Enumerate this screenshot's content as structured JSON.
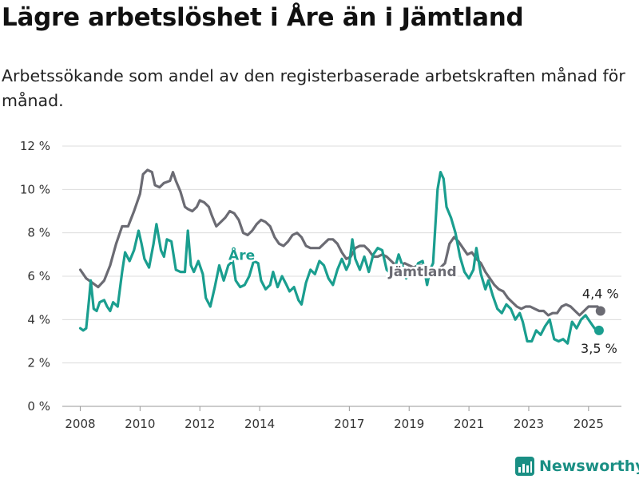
{
  "chart_data": {
    "type": "line",
    "title": "Lägre arbetslöshet i Åre än i Jämtland",
    "subtitle": "Arbetssökande som andel av den registerbaserade arbetskraften månad för månad.",
    "ylim": [
      0,
      12
    ],
    "y_ticks": [
      0,
      2,
      4,
      6,
      8,
      10,
      12
    ],
    "y_tick_labels": [
      "0 %",
      "2 %",
      "4 %",
      "6 %",
      "8 %",
      "10 %",
      "12 %"
    ],
    "x_tick_years": [
      2008,
      2010,
      2012,
      2014,
      2017,
      2019,
      2021,
      2023,
      2025
    ],
    "x_tick_labels": [
      "2008",
      "2010",
      "2012",
      "2014",
      "2017",
      "2019",
      "2021",
      "2023",
      "2025"
    ],
    "xlim": [
      2007.4,
      2026.1
    ],
    "grid": true,
    "series": [
      {
        "name": "Jämtland",
        "color": "#6b6b73",
        "end_label": "4,4 %",
        "points": [
          [
            2008.0,
            6.3
          ],
          [
            2008.2,
            5.9
          ],
          [
            2008.4,
            5.7
          ],
          [
            2008.6,
            5.5
          ],
          [
            2008.8,
            5.8
          ],
          [
            2009.0,
            6.5
          ],
          [
            2009.2,
            7.5
          ],
          [
            2009.4,
            8.3
          ],
          [
            2009.6,
            8.3
          ],
          [
            2009.8,
            9.0
          ],
          [
            2010.0,
            9.8
          ],
          [
            2010.1,
            10.7
          ],
          [
            2010.25,
            10.9
          ],
          [
            2010.4,
            10.8
          ],
          [
            2010.5,
            10.2
          ],
          [
            2010.65,
            10.1
          ],
          [
            2010.8,
            10.3
          ],
          [
            2011.0,
            10.4
          ],
          [
            2011.1,
            10.8
          ],
          [
            2011.2,
            10.4
          ],
          [
            2011.35,
            9.9
          ],
          [
            2011.5,
            9.2
          ],
          [
            2011.6,
            9.1
          ],
          [
            2011.75,
            9.0
          ],
          [
            2011.9,
            9.2
          ],
          [
            2012.0,
            9.5
          ],
          [
            2012.15,
            9.4
          ],
          [
            2012.3,
            9.2
          ],
          [
            2012.4,
            8.8
          ],
          [
            2012.55,
            8.3
          ],
          [
            2012.7,
            8.5
          ],
          [
            2012.85,
            8.7
          ],
          [
            2013.0,
            9.0
          ],
          [
            2013.15,
            8.9
          ],
          [
            2013.3,
            8.6
          ],
          [
            2013.45,
            8.0
          ],
          [
            2013.6,
            7.9
          ],
          [
            2013.75,
            8.1
          ],
          [
            2013.9,
            8.4
          ],
          [
            2014.05,
            8.6
          ],
          [
            2014.2,
            8.5
          ],
          [
            2014.35,
            8.3
          ],
          [
            2014.5,
            7.8
          ],
          [
            2014.65,
            7.5
          ],
          [
            2014.8,
            7.4
          ],
          [
            2014.95,
            7.6
          ],
          [
            2015.1,
            7.9
          ],
          [
            2015.25,
            8.0
          ],
          [
            2015.4,
            7.8
          ],
          [
            2015.55,
            7.4
          ],
          [
            2015.7,
            7.3
          ],
          [
            2015.85,
            7.3
          ],
          [
            2016.0,
            7.3
          ],
          [
            2016.15,
            7.5
          ],
          [
            2016.3,
            7.7
          ],
          [
            2016.45,
            7.7
          ],
          [
            2016.6,
            7.5
          ],
          [
            2016.75,
            7.1
          ],
          [
            2016.9,
            6.8
          ],
          [
            2017.05,
            6.9
          ],
          [
            2017.2,
            7.3
          ],
          [
            2017.35,
            7.4
          ],
          [
            2017.5,
            7.4
          ],
          [
            2017.65,
            7.2
          ],
          [
            2017.8,
            6.9
          ],
          [
            2017.95,
            6.9
          ],
          [
            2018.1,
            7.0
          ],
          [
            2018.25,
            6.9
          ],
          [
            2018.4,
            6.7
          ],
          [
            2018.55,
            6.5
          ],
          [
            2018.7,
            6.5
          ],
          [
            2018.85,
            6.6
          ],
          [
            2019.0,
            6.5
          ],
          [
            2019.15,
            6.4
          ],
          [
            2019.3,
            6.5
          ],
          [
            2019.45,
            6.5
          ],
          [
            2019.6,
            6.4
          ],
          [
            2019.75,
            6.3
          ],
          [
            2019.9,
            6.3
          ],
          [
            2020.05,
            6.4
          ],
          [
            2020.2,
            6.6
          ],
          [
            2020.35,
            7.5
          ],
          [
            2020.5,
            7.8
          ],
          [
            2020.65,
            7.6
          ],
          [
            2020.8,
            7.3
          ],
          [
            2020.95,
            7.0
          ],
          [
            2021.1,
            7.1
          ],
          [
            2021.25,
            6.8
          ],
          [
            2021.4,
            6.6
          ],
          [
            2021.55,
            6.2
          ],
          [
            2021.7,
            5.9
          ],
          [
            2021.85,
            5.6
          ],
          [
            2022.0,
            5.4
          ],
          [
            2022.15,
            5.3
          ],
          [
            2022.3,
            5.0
          ],
          [
            2022.45,
            4.8
          ],
          [
            2022.6,
            4.6
          ],
          [
            2022.75,
            4.5
          ],
          [
            2022.9,
            4.6
          ],
          [
            2023.05,
            4.6
          ],
          [
            2023.2,
            4.5
          ],
          [
            2023.35,
            4.4
          ],
          [
            2023.5,
            4.4
          ],
          [
            2023.65,
            4.2
          ],
          [
            2023.8,
            4.3
          ],
          [
            2023.95,
            4.3
          ],
          [
            2024.1,
            4.6
          ],
          [
            2024.25,
            4.7
          ],
          [
            2024.4,
            4.6
          ],
          [
            2024.55,
            4.4
          ],
          [
            2024.7,
            4.2
          ],
          [
            2024.85,
            4.4
          ],
          [
            2025.0,
            4.6
          ],
          [
            2025.15,
            4.6
          ],
          [
            2025.3,
            4.6
          ],
          [
            2025.4,
            4.4
          ]
        ]
      },
      {
        "name": "Åre",
        "color": "#1a9e8f",
        "end_label": "3,5 %",
        "points": [
          [
            2008.0,
            3.6
          ],
          [
            2008.1,
            3.5
          ],
          [
            2008.2,
            3.6
          ],
          [
            2008.3,
            5.0
          ],
          [
            2008.35,
            5.8
          ],
          [
            2008.45,
            4.5
          ],
          [
            2008.55,
            4.4
          ],
          [
            2008.65,
            4.8
          ],
          [
            2008.8,
            4.9
          ],
          [
            2008.9,
            4.6
          ],
          [
            2009.0,
            4.4
          ],
          [
            2009.1,
            4.8
          ],
          [
            2009.25,
            4.6
          ],
          [
            2009.4,
            6.2
          ],
          [
            2009.5,
            7.1
          ],
          [
            2009.65,
            6.7
          ],
          [
            2009.8,
            7.2
          ],
          [
            2009.95,
            8.1
          ],
          [
            2010.05,
            7.5
          ],
          [
            2010.15,
            6.8
          ],
          [
            2010.3,
            6.4
          ],
          [
            2010.45,
            7.5
          ],
          [
            2010.55,
            8.4
          ],
          [
            2010.7,
            7.2
          ],
          [
            2010.8,
            6.9
          ],
          [
            2010.9,
            7.7
          ],
          [
            2011.05,
            7.6
          ],
          [
            2011.2,
            6.3
          ],
          [
            2011.35,
            6.2
          ],
          [
            2011.5,
            6.2
          ],
          [
            2011.6,
            8.1
          ],
          [
            2011.7,
            6.5
          ],
          [
            2011.8,
            6.2
          ],
          [
            2011.95,
            6.7
          ],
          [
            2012.1,
            6.1
          ],
          [
            2012.2,
            5.0
          ],
          [
            2012.35,
            4.6
          ],
          [
            2012.5,
            5.5
          ],
          [
            2012.65,
            6.5
          ],
          [
            2012.8,
            5.8
          ],
          [
            2012.95,
            6.5
          ],
          [
            2013.1,
            6.7
          ],
          [
            2013.2,
            5.8
          ],
          [
            2013.35,
            5.5
          ],
          [
            2013.5,
            5.6
          ],
          [
            2013.65,
            6.0
          ],
          [
            2013.8,
            6.7
          ],
          [
            2013.95,
            6.6
          ],
          [
            2014.05,
            5.8
          ],
          [
            2014.2,
            5.4
          ],
          [
            2014.35,
            5.6
          ],
          [
            2014.45,
            6.2
          ],
          [
            2014.6,
            5.5
          ],
          [
            2014.75,
            6.0
          ],
          [
            2014.9,
            5.6
          ],
          [
            2015.0,
            5.3
          ],
          [
            2015.15,
            5.5
          ],
          [
            2015.3,
            4.9
          ],
          [
            2015.4,
            4.7
          ],
          [
            2015.55,
            5.7
          ],
          [
            2015.7,
            6.3
          ],
          [
            2015.85,
            6.1
          ],
          [
            2016.0,
            6.7
          ],
          [
            2016.15,
            6.5
          ],
          [
            2016.3,
            5.9
          ],
          [
            2016.45,
            5.6
          ],
          [
            2016.6,
            6.3
          ],
          [
            2016.75,
            6.8
          ],
          [
            2016.9,
            6.3
          ],
          [
            2017.0,
            6.6
          ],
          [
            2017.1,
            7.7
          ],
          [
            2017.2,
            6.8
          ],
          [
            2017.35,
            6.3
          ],
          [
            2017.5,
            6.9
          ],
          [
            2017.65,
            6.2
          ],
          [
            2017.8,
            7.0
          ],
          [
            2017.95,
            7.3
          ],
          [
            2018.1,
            7.2
          ],
          [
            2018.25,
            6.3
          ],
          [
            2018.4,
            6.1
          ],
          [
            2018.55,
            6.5
          ],
          [
            2018.65,
            7.0
          ],
          [
            2018.8,
            6.4
          ],
          [
            2018.9,
            5.9
          ],
          [
            2019.0,
            6.3
          ],
          [
            2019.15,
            6.1
          ],
          [
            2019.3,
            6.6
          ],
          [
            2019.45,
            6.7
          ],
          [
            2019.6,
            5.6
          ],
          [
            2019.7,
            6.3
          ],
          [
            2019.8,
            6.6
          ],
          [
            2019.95,
            10.0
          ],
          [
            2020.05,
            10.8
          ],
          [
            2020.15,
            10.5
          ],
          [
            2020.25,
            9.2
          ],
          [
            2020.4,
            8.7
          ],
          [
            2020.55,
            8.0
          ],
          [
            2020.7,
            6.9
          ],
          [
            2020.85,
            6.2
          ],
          [
            2021.0,
            5.9
          ],
          [
            2021.15,
            6.3
          ],
          [
            2021.25,
            7.3
          ],
          [
            2021.4,
            6.1
          ],
          [
            2021.55,
            5.4
          ],
          [
            2021.65,
            5.8
          ],
          [
            2021.8,
            5.1
          ],
          [
            2021.95,
            4.5
          ],
          [
            2022.1,
            4.3
          ],
          [
            2022.25,
            4.7
          ],
          [
            2022.4,
            4.5
          ],
          [
            2022.55,
            4.0
          ],
          [
            2022.7,
            4.3
          ],
          [
            2022.8,
            3.9
          ],
          [
            2022.95,
            3.0
          ],
          [
            2023.1,
            3.0
          ],
          [
            2023.25,
            3.5
          ],
          [
            2023.4,
            3.3
          ],
          [
            2023.55,
            3.7
          ],
          [
            2023.7,
            4.0
          ],
          [
            2023.85,
            3.1
          ],
          [
            2024.0,
            3.0
          ],
          [
            2024.15,
            3.1
          ],
          [
            2024.3,
            2.9
          ],
          [
            2024.45,
            3.9
          ],
          [
            2024.6,
            3.6
          ],
          [
            2024.75,
            4.0
          ],
          [
            2024.9,
            4.2
          ],
          [
            2025.05,
            3.9
          ],
          [
            2025.2,
            3.6
          ],
          [
            2025.35,
            3.5
          ]
        ]
      }
    ],
    "series_labels": [
      {
        "name": "Åre",
        "x": 2013.4,
        "y": 6.75
      },
      {
        "name": "Jämtland",
        "x": 2019.45,
        "y": 6.0
      }
    ]
  },
  "branding": {
    "logo_text": "Newsworthy",
    "logo_color": "#1a8f84"
  }
}
